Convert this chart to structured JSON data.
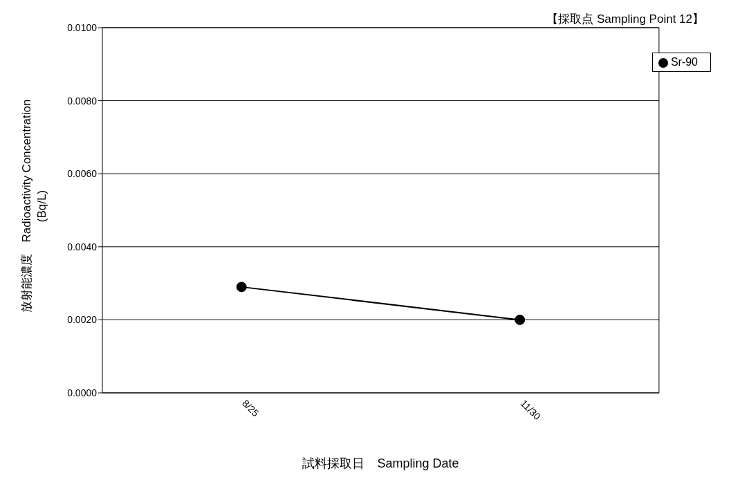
{
  "chart_data": {
    "type": "line",
    "title": "【採取点 Sampling Point 12】",
    "xlabel": "試料採取日　Sampling Date",
    "ylabel": "放射能濃度　Radioactivity Concentration\n(Bq/L)",
    "categories": [
      "8/25",
      "11/30"
    ],
    "series": [
      {
        "name": "Sr-90",
        "color": "#000000",
        "values": [
          0.0029,
          0.002
        ]
      }
    ],
    "ylim": [
      0,
      0.01
    ],
    "yticks": [
      {
        "value": 0,
        "label": "0.0000"
      },
      {
        "value": 0.002,
        "label": "0.0020"
      },
      {
        "value": 0.004,
        "label": "0.0040"
      },
      {
        "value": 0.006,
        "label": "0.0060"
      },
      {
        "value": 0.008,
        "label": "0.0080"
      },
      {
        "value": 0.01,
        "label": "0.0100"
      }
    ],
    "grid": "y",
    "legend": "top right",
    "marker": "circle",
    "line_style": "solid"
  }
}
